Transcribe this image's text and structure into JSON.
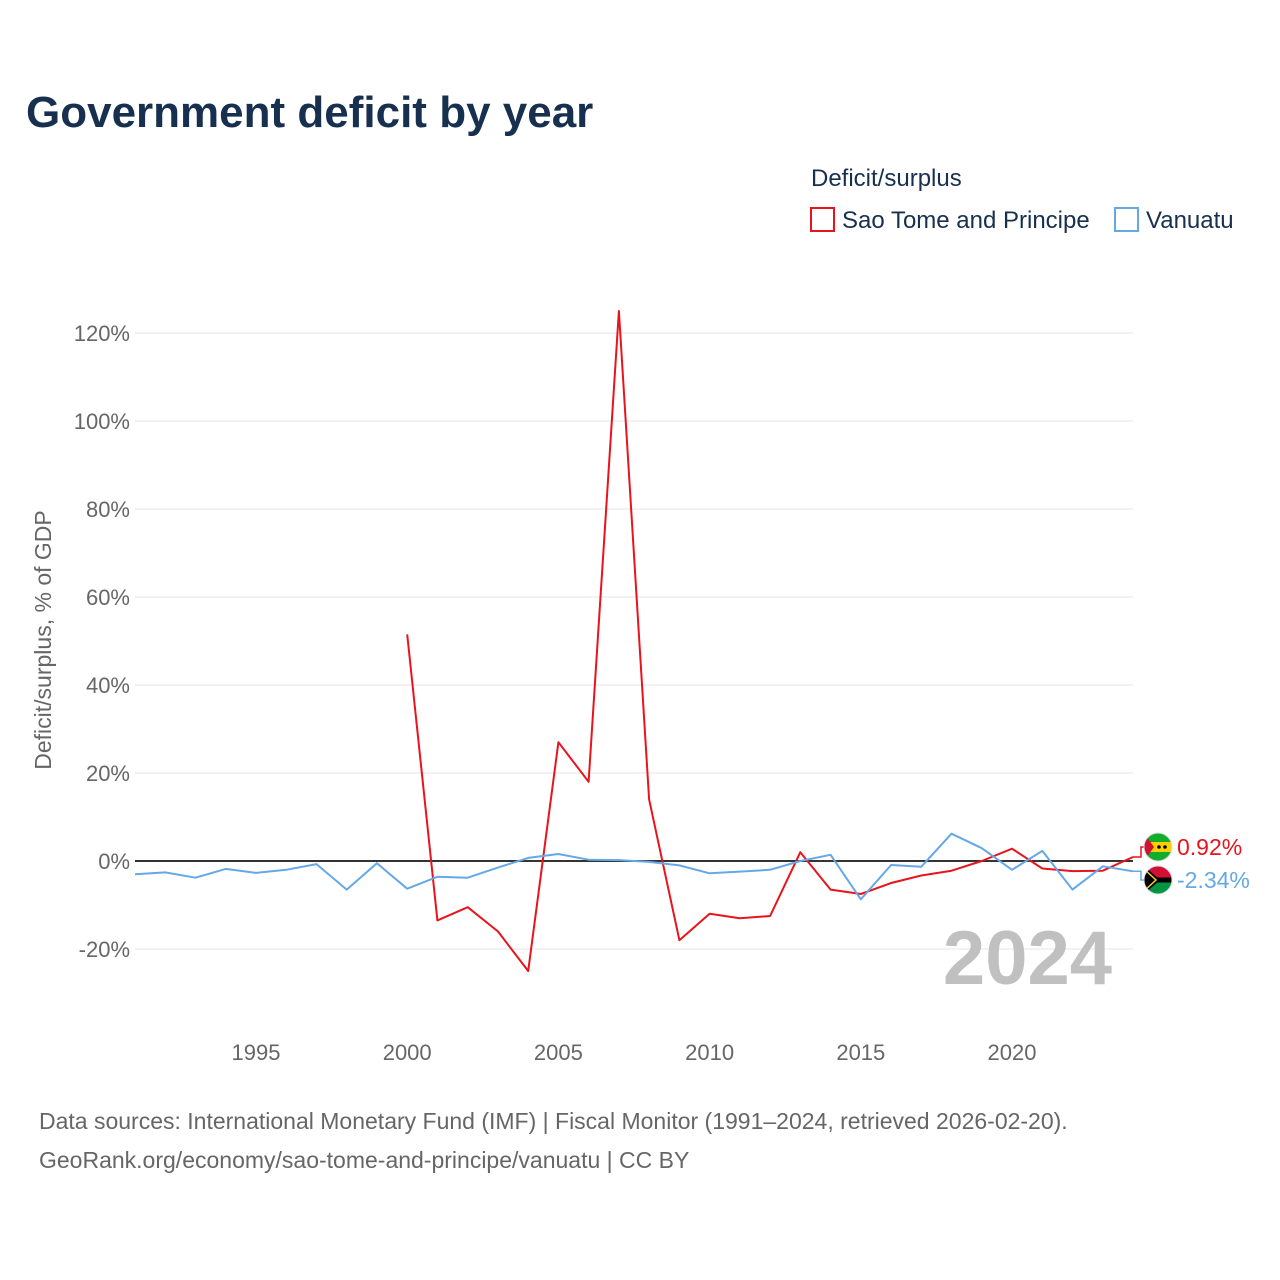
{
  "title": "Government deficit by year",
  "legend": {
    "title": "Deficit/surplus",
    "items": [
      {
        "label": "Sao Tome and Principe",
        "color": "#e8141c"
      },
      {
        "label": "Vanuatu",
        "color": "#65a8e6"
      }
    ]
  },
  "year_watermark": "2024",
  "end_labels": {
    "stp": "0.92%",
    "vut": "-2.34%"
  },
  "source": {
    "line1": "Data sources: International Monetary Fund (IMF) | Fiscal Monitor (1991–2024, retrieved 2026-02-20).",
    "line2": "GeoRank.org/economy/sao-tome-and-principe/vanuatu | CC BY"
  },
  "chart_data": {
    "type": "line",
    "title": "Government deficit by year",
    "ylabel": "Deficit/surplus, % of GDP",
    "xlabel": "",
    "xlim": [
      1991,
      2024
    ],
    "ylim": [
      -30,
      128
    ],
    "xticks": [
      1995,
      2000,
      2005,
      2010,
      2015,
      2020
    ],
    "xtick_labels": [
      "1995",
      "2000",
      "2005",
      "2010",
      "2015",
      "2020"
    ],
    "yticks": [
      -20,
      0,
      20,
      40,
      60,
      80,
      100,
      120
    ],
    "ytick_labels": [
      "-20%",
      "0%",
      "20%",
      "40%",
      "60%",
      "80%",
      "100%",
      "120%"
    ],
    "grid": true,
    "legend_position": "top-right",
    "series": [
      {
        "name": "Sao Tome and Principe",
        "color": "#e8141c",
        "x": [
          2000,
          2001,
          2002,
          2003,
          2004,
          2005,
          2006,
          2007,
          2008,
          2009,
          2010,
          2011,
          2012,
          2013,
          2014,
          2015,
          2016,
          2017,
          2018,
          2019,
          2020,
          2021,
          2022,
          2023,
          2024
        ],
        "values": [
          51.5,
          -13.5,
          -10.5,
          -16,
          -25,
          27,
          18,
          125,
          14,
          -18,
          -12,
          -13,
          -12.5,
          2,
          -6.5,
          -7.5,
          -5,
          -3.3,
          -2.2,
          0,
          2.8,
          -1.7,
          -2.3,
          -2.2,
          0.92
        ]
      },
      {
        "name": "Vanuatu",
        "color": "#65a8e6",
        "x": [
          1991,
          1992,
          1993,
          1994,
          1995,
          1996,
          1997,
          1998,
          1999,
          2000,
          2001,
          2002,
          2003,
          2004,
          2005,
          2006,
          2007,
          2008,
          2009,
          2010,
          2011,
          2012,
          2013,
          2014,
          2015,
          2016,
          2017,
          2018,
          2019,
          2020,
          2021,
          2022,
          2023,
          2024
        ],
        "values": [
          -3,
          -2.6,
          -3.8,
          -1.8,
          -2.7,
          -2,
          -0.7,
          -6.5,
          -0.5,
          -6.3,
          -3.6,
          -3.8,
          -1.5,
          0.7,
          1.6,
          0.3,
          0.2,
          -0.2,
          -1,
          -2.8,
          -2.4,
          -2,
          0,
          1.4,
          -8.7,
          -0.9,
          -1.3,
          6.2,
          2.9,
          -2,
          2.3,
          -6.5,
          -1.2,
          -2.34
        ]
      }
    ]
  }
}
